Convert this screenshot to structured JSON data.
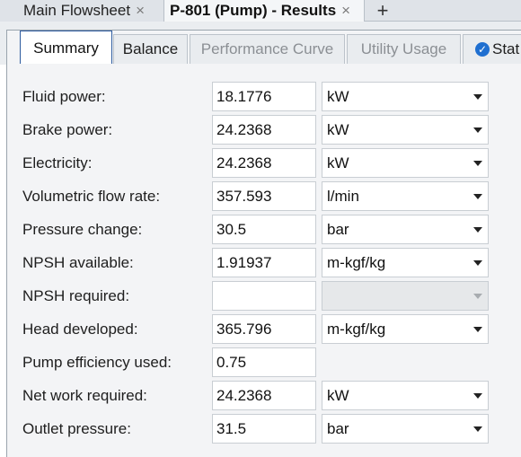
{
  "doc_tabs": [
    {
      "label": "Main Flowsheet",
      "close": "×"
    },
    {
      "label": "P-801 (Pump) - Results",
      "close": "×"
    }
  ],
  "add_tab": "+",
  "sub_tabs": {
    "summary": "Summary",
    "balance": "Balance",
    "performance_curve": "Performance Curve",
    "utility_usage": "Utility Usage",
    "status": "Stat",
    "status_icon": "check-circle-icon"
  },
  "rows": [
    {
      "label": "Fluid power:",
      "value": "18.1776",
      "unit": "kW"
    },
    {
      "label": "Brake power:",
      "value": "24.2368",
      "unit": "kW"
    },
    {
      "label": "Electricity:",
      "value": "24.2368",
      "unit": "kW"
    },
    {
      "label": "Volumetric flow rate:",
      "value": "357.593",
      "unit": "l/min"
    },
    {
      "label": "Pressure change:",
      "value": "30.5",
      "unit": "bar"
    },
    {
      "label": "NPSH available:",
      "value": "1.91937",
      "unit": "m-kgf/kg"
    },
    {
      "label": "NPSH required:",
      "value": "",
      "unit": ""
    },
    {
      "label": "Head developed:",
      "value": "365.796",
      "unit": "m-kgf/kg"
    },
    {
      "label": "Pump efficiency used:",
      "value": "0.75"
    },
    {
      "label": "Net work required:",
      "value": "24.2368",
      "unit": "kW"
    },
    {
      "label": "Outlet pressure:",
      "value": "31.5",
      "unit": "bar"
    }
  ],
  "colors": {
    "selected_tab_border": "#2d5b9f",
    "status_icon": "#1f6fd0"
  }
}
